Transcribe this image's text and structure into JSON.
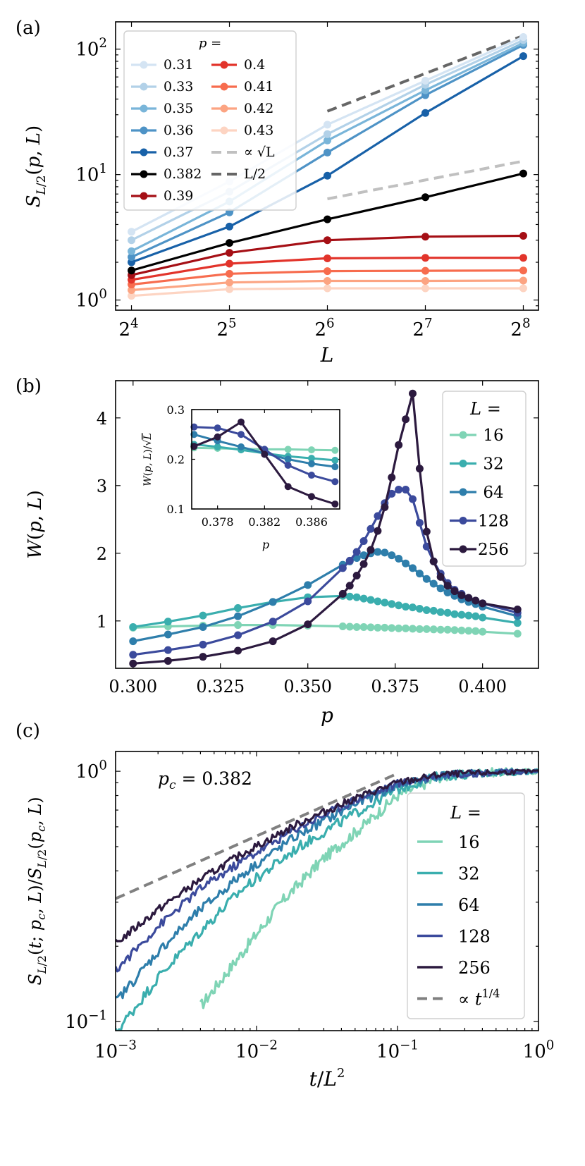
{
  "chart_data": [
    {
      "panel_label": "(a)",
      "type": "line",
      "log_x": true,
      "log_y": true,
      "xlabel": "L",
      "ylabel": "S_{L/2}(p, L)",
      "x": [
        16,
        32,
        64,
        128,
        256
      ],
      "x_tick_labels": [
        {
          "base": "2",
          "exp": "4"
        },
        {
          "base": "2",
          "exp": "5"
        },
        {
          "base": "2",
          "exp": "6"
        },
        {
          "base": "2",
          "exp": "7"
        },
        {
          "base": "2",
          "exp": "8"
        }
      ],
      "y_tick_labels": [
        {
          "base": "10",
          "exp": "0"
        },
        {
          "base": "10",
          "exp": "1"
        },
        {
          "base": "10",
          "exp": "2"
        }
      ],
      "xlim": [
        14.3,
        285
      ],
      "ylim": [
        0.83,
        165
      ],
      "legend_title": "p =",
      "legend_location": "upper left",
      "series": [
        {
          "name": "0.31",
          "color": "#d4e4f3",
          "values": [
            3.5,
            8.8,
            25,
            56,
            125
          ]
        },
        {
          "name": "0.33",
          "color": "#b2d1e8",
          "values": [
            3.0,
            7.3,
            21,
            52,
            118
          ]
        },
        {
          "name": "0.35",
          "color": "#79b5d9",
          "values": [
            2.45,
            6.1,
            18.7,
            47,
            112
          ]
        },
        {
          "name": "0.36",
          "color": "#4e93c6",
          "values": [
            2.2,
            5.0,
            15,
            43,
            108
          ]
        },
        {
          "name": "0.37",
          "color": "#1861a8",
          "values": [
            2.0,
            3.85,
            9.8,
            31,
            88
          ]
        },
        {
          "name": "0.382",
          "color": "#000000",
          "values": [
            1.72,
            2.85,
            4.4,
            6.6,
            10.2
          ]
        },
        {
          "name": "0.39",
          "color": "#a50f15",
          "values": [
            1.58,
            2.38,
            3.0,
            3.2,
            3.25
          ]
        },
        {
          "name": "0.4",
          "color": "#e2342b",
          "values": [
            1.45,
            1.95,
            2.15,
            2.17,
            2.17
          ]
        },
        {
          "name": "0.41",
          "color": "#f76c4e",
          "values": [
            1.33,
            1.62,
            1.7,
            1.71,
            1.72
          ]
        },
        {
          "name": "0.42",
          "color": "#fca482",
          "values": [
            1.2,
            1.38,
            1.42,
            1.42,
            1.43
          ]
        },
        {
          "name": "0.43",
          "color": "#fdd4c2",
          "values": [
            1.08,
            1.22,
            1.24,
            1.24,
            1.24
          ]
        }
      ],
      "reference_lines": [
        {
          "name": "∝ √L",
          "color": "#c0c0c0",
          "dashed": true,
          "x": [
            64,
            256
          ],
          "y": [
            6.4,
            12.8
          ]
        },
        {
          "name": "L/2",
          "color": "#666666",
          "dashed": true,
          "x": [
            64,
            256
          ],
          "y": [
            32,
            128
          ]
        }
      ]
    },
    {
      "panel_label": "(b)",
      "type": "line",
      "xlabel": "p",
      "ylabel": "W(p, L)",
      "xlim": [
        0.295,
        0.416
      ],
      "ylim": [
        0.3,
        4.55
      ],
      "xticks": [
        0.3,
        0.325,
        0.35,
        0.375,
        0.4
      ],
      "x_tick_labels": [
        "0.300",
        "0.325",
        "0.350",
        "0.375",
        "0.400"
      ],
      "yticks": [
        1,
        2,
        3,
        4
      ],
      "y_tick_labels": [
        "1",
        "2",
        "3",
        "4"
      ],
      "legend_title": "L =",
      "legend_location": "upper right",
      "series": [
        {
          "name": "16",
          "color": "#7fd4b5",
          "x": [
            0.3,
            0.31,
            0.32,
            0.33,
            0.34,
            0.35,
            0.36,
            0.362,
            0.364,
            0.366,
            0.368,
            0.37,
            0.372,
            0.374,
            0.376,
            0.378,
            0.38,
            0.382,
            0.384,
            0.386,
            0.388,
            0.39,
            0.392,
            0.394,
            0.396,
            0.398,
            0.4,
            0.41
          ],
          "values": [
            0.9,
            0.92,
            0.93,
            0.94,
            0.94,
            0.93,
            0.92,
            0.915,
            0.91,
            0.91,
            0.905,
            0.9,
            0.9,
            0.895,
            0.89,
            0.89,
            0.885,
            0.88,
            0.88,
            0.875,
            0.87,
            0.87,
            0.865,
            0.86,
            0.855,
            0.85,
            0.84,
            0.81
          ]
        },
        {
          "name": "32",
          "color": "#3aaeae",
          "x": [
            0.3,
            0.31,
            0.32,
            0.33,
            0.34,
            0.35,
            0.36,
            0.362,
            0.364,
            0.366,
            0.368,
            0.37,
            0.372,
            0.374,
            0.376,
            0.378,
            0.38,
            0.382,
            0.384,
            0.386,
            0.388,
            0.39,
            0.392,
            0.394,
            0.396,
            0.398,
            0.4,
            0.41
          ],
          "values": [
            0.91,
            0.99,
            1.08,
            1.19,
            1.28,
            1.35,
            1.37,
            1.36,
            1.35,
            1.33,
            1.31,
            1.29,
            1.27,
            1.25,
            1.23,
            1.21,
            1.2,
            1.18,
            1.16,
            1.15,
            1.13,
            1.12,
            1.1,
            1.09,
            1.08,
            1.07,
            1.05,
            0.97
          ]
        },
        {
          "name": "64",
          "color": "#2e7eab",
          "x": [
            0.3,
            0.31,
            0.32,
            0.33,
            0.34,
            0.35,
            0.36,
            0.362,
            0.364,
            0.366,
            0.368,
            0.37,
            0.372,
            0.374,
            0.376,
            0.378,
            0.38,
            0.382,
            0.384,
            0.386,
            0.388,
            0.39,
            0.392,
            0.394,
            0.396,
            0.398,
            0.4,
            0.41
          ],
          "values": [
            0.7,
            0.8,
            0.91,
            1.07,
            1.28,
            1.53,
            1.83,
            1.88,
            1.93,
            1.97,
            2.0,
            2.02,
            2.01,
            1.97,
            1.92,
            1.85,
            1.78,
            1.7,
            1.62,
            1.55,
            1.48,
            1.42,
            1.37,
            1.32,
            1.28,
            1.25,
            1.21,
            1.07
          ]
        },
        {
          "name": "128",
          "color": "#3b4a9c",
          "x": [
            0.3,
            0.31,
            0.32,
            0.33,
            0.34,
            0.35,
            0.36,
            0.362,
            0.364,
            0.366,
            0.368,
            0.37,
            0.372,
            0.374,
            0.376,
            0.378,
            0.38,
            0.382,
            0.384,
            0.386,
            0.388,
            0.39,
            0.392,
            0.394,
            0.396,
            0.398,
            0.4,
            0.41
          ],
          "values": [
            0.5,
            0.57,
            0.65,
            0.79,
            0.99,
            1.29,
            1.78,
            1.89,
            2.02,
            2.18,
            2.36,
            2.55,
            2.74,
            2.88,
            2.94,
            2.94,
            2.8,
            2.45,
            2.1,
            1.88,
            1.7,
            1.56,
            1.46,
            1.4,
            1.34,
            1.3,
            1.26,
            1.12
          ]
        },
        {
          "name": "256",
          "color": "#2c1a3f",
          "x": [
            0.3,
            0.31,
            0.32,
            0.33,
            0.34,
            0.35,
            0.36,
            0.362,
            0.364,
            0.366,
            0.368,
            0.37,
            0.372,
            0.374,
            0.376,
            0.378,
            0.38,
            0.382,
            0.384,
            0.386,
            0.388,
            0.39,
            0.392,
            0.394,
            0.396,
            0.398,
            0.4,
            0.41
          ],
          "values": [
            0.37,
            0.41,
            0.47,
            0.56,
            0.7,
            0.95,
            1.4,
            1.52,
            1.67,
            1.84,
            2.05,
            2.33,
            2.68,
            3.12,
            3.6,
            3.98,
            4.36,
            3.25,
            2.32,
            1.88,
            1.65,
            1.52,
            1.44,
            1.38,
            1.34,
            1.3,
            1.26,
            1.17
          ]
        }
      ],
      "inset": {
        "xlabel": "p",
        "ylabel": "W(p, L)/√L",
        "xlim": [
          0.3758,
          0.3884
        ],
        "ylim": [
          0.1,
          0.3
        ],
        "xticks": [
          0.378,
          0.382,
          0.386
        ],
        "x_tick_labels": [
          "0.378",
          "0.382",
          "0.386"
        ],
        "yticks": [
          0.1,
          0.2,
          0.3
        ],
        "y_tick_labels": [
          "0.1",
          "0.2",
          "0.3"
        ],
        "x": [
          0.376,
          0.378,
          0.38,
          0.382,
          0.384,
          0.386,
          0.388
        ],
        "series": [
          {
            "name": "16",
            "values": [
              0.223,
              0.222,
              0.221,
              0.22,
              0.22,
              0.219,
              0.218
            ]
          },
          {
            "name": "32",
            "values": [
              0.23,
              0.225,
              0.219,
              0.212,
              0.206,
              0.202,
              0.198
            ]
          },
          {
            "name": "64",
            "values": [
              0.25,
              0.237,
              0.225,
              0.212,
              0.2,
              0.191,
              0.185
            ]
          },
          {
            "name": "128",
            "values": [
              0.265,
              0.263,
              0.25,
              0.22,
              0.188,
              0.168,
              0.155
            ]
          },
          {
            "name": "256",
            "values": [
              0.226,
              0.245,
              0.275,
              0.21,
              0.145,
              0.125,
              0.11
            ]
          }
        ]
      }
    },
    {
      "panel_label": "(c)",
      "type": "line",
      "log_x": true,
      "log_y": true,
      "xlabel": "t/L^2",
      "ylabel": "S_{L/2}(t; p_c, L)/S_{L/2}(p_c, L)",
      "xlim": [
        0.001,
        1.0
      ],
      "ylim": [
        0.092,
        1.2
      ],
      "x_tick_labels": [
        {
          "base": "10",
          "exp": "−3"
        },
        {
          "base": "10",
          "exp": "−2"
        },
        {
          "base": "10",
          "exp": "−1"
        },
        {
          "base": "10",
          "exp": "0"
        }
      ],
      "y_tick_labels": [
        {
          "base": "10",
          "exp": "−1"
        },
        {
          "base": "10",
          "exp": "0"
        }
      ],
      "annotation": "p_c = 0.382",
      "legend_title": "L =",
      "legend_location": "lower right",
      "series": [
        {
          "name": "16",
          "color": "#7fd4b5",
          "t_min": 0.004,
          "curve": [
            [
              0.004,
              0.115
            ],
            [
              0.008,
              0.19
            ],
            [
              0.015,
              0.3
            ],
            [
              0.03,
              0.45
            ],
            [
              0.06,
              0.62
            ],
            [
              0.1,
              0.8
            ],
            [
              0.2,
              0.95
            ],
            [
              0.4,
              0.99
            ],
            [
              1.0,
              1.0
            ]
          ]
        },
        {
          "name": "32",
          "color": "#3aaeae",
          "t_min": 0.001,
          "curve": [
            [
              0.001,
              0.09
            ],
            [
              0.002,
              0.15
            ],
            [
              0.004,
              0.23
            ],
            [
              0.008,
              0.34
            ],
            [
              0.02,
              0.5
            ],
            [
              0.05,
              0.68
            ],
            [
              0.1,
              0.85
            ],
            [
              0.2,
              0.96
            ],
            [
              0.5,
              0.99
            ],
            [
              1.0,
              1.0
            ]
          ]
        },
        {
          "name": "64",
          "color": "#2e7eab",
          "t_min": 0.001,
          "curve": [
            [
              0.001,
              0.12
            ],
            [
              0.002,
              0.19
            ],
            [
              0.004,
              0.28
            ],
            [
              0.008,
              0.39
            ],
            [
              0.02,
              0.56
            ],
            [
              0.05,
              0.74
            ],
            [
              0.1,
              0.88
            ],
            [
              0.2,
              0.96
            ],
            [
              0.5,
              0.99
            ],
            [
              1.0,
              1.0
            ]
          ]
        },
        {
          "name": "128",
          "color": "#3b4a9c",
          "t_min": 0.001,
          "curve": [
            [
              0.001,
              0.16
            ],
            [
              0.002,
              0.24
            ],
            [
              0.004,
              0.34
            ],
            [
              0.008,
              0.44
            ],
            [
              0.02,
              0.6
            ],
            [
              0.05,
              0.77
            ],
            [
              0.1,
              0.89
            ],
            [
              0.2,
              0.97
            ],
            [
              0.5,
              0.99
            ],
            [
              1.0,
              1.0
            ]
          ]
        },
        {
          "name": "256",
          "color": "#2c1a3f",
          "t_min": 0.001,
          "curve": [
            [
              0.001,
              0.205
            ],
            [
              0.002,
              0.28
            ],
            [
              0.004,
              0.37
            ],
            [
              0.008,
              0.47
            ],
            [
              0.02,
              0.62
            ],
            [
              0.05,
              0.78
            ],
            [
              0.1,
              0.9
            ],
            [
              0.2,
              0.97
            ],
            [
              0.5,
              0.99
            ],
            [
              1.0,
              1.0
            ]
          ]
        }
      ],
      "reference_line": {
        "name": "∝ t^{1/4}",
        "color": "#808080",
        "dashed": true,
        "x": [
          0.001,
          0.1
        ],
        "y": [
          0.31,
          0.98
        ]
      }
    }
  ]
}
